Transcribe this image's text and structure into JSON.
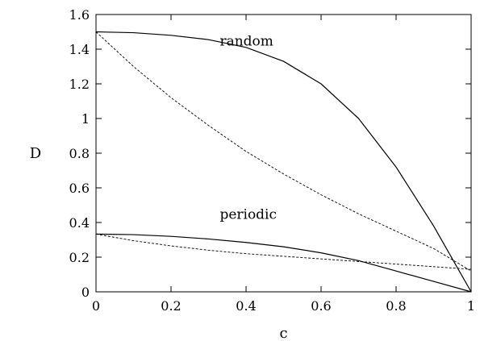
{
  "chart_data": {
    "type": "line",
    "title": "",
    "xlabel": "c",
    "ylabel": "D",
    "xlim": [
      0,
      1
    ],
    "ylim": [
      0,
      1.6
    ],
    "xticks": [
      0,
      0.2,
      0.4,
      0.6,
      0.8,
      1
    ],
    "yticks": [
      0,
      0.2,
      0.4,
      0.6,
      0.8,
      1,
      1.2,
      1.4,
      1.6
    ],
    "xtick_labels": [
      "0",
      "0.2",
      "0.4",
      "0.6",
      "0.8",
      "1"
    ],
    "ytick_labels": [
      "0",
      "0.2",
      "0.4",
      "0.6",
      "0.8",
      "1",
      "1.2",
      "1.4",
      "1.6"
    ],
    "grid": false,
    "legend": "none",
    "annotations": [
      {
        "text": "random",
        "x": 0.33,
        "y": 1.42
      },
      {
        "text": "periodic",
        "x": 0.33,
        "y": 0.42
      }
    ],
    "series": [
      {
        "style": "solid",
        "x": [
          0,
          0.1,
          0.2,
          0.3,
          0.4,
          0.5,
          0.6,
          0.7,
          0.8,
          0.9,
          0.95,
          1.0
        ],
        "y": [
          1.5,
          1.495,
          1.48,
          1.455,
          1.41,
          1.33,
          1.2,
          1.0,
          0.72,
          0.38,
          0.19,
          0.0
        ]
      },
      {
        "style": "dashed",
        "x": [
          0,
          0.1,
          0.2,
          0.3,
          0.4,
          0.5,
          0.6,
          0.7,
          0.8,
          0.9,
          1.0
        ],
        "y": [
          1.5,
          1.3,
          1.12,
          0.96,
          0.81,
          0.68,
          0.56,
          0.45,
          0.35,
          0.25,
          0.12
        ]
      },
      {
        "style": "solid",
        "x": [
          0,
          0.1,
          0.2,
          0.3,
          0.4,
          0.5,
          0.6,
          0.7,
          0.8,
          0.9,
          1.0
        ],
        "y": [
          0.333,
          0.33,
          0.32,
          0.305,
          0.285,
          0.26,
          0.225,
          0.18,
          0.12,
          0.06,
          0.0
        ]
      },
      {
        "style": "dashed",
        "x": [
          0,
          0.1,
          0.2,
          0.3,
          0.4,
          0.5,
          0.6,
          0.7,
          0.8,
          0.9,
          1.0
        ],
        "y": [
          0.333,
          0.295,
          0.265,
          0.24,
          0.22,
          0.205,
          0.19,
          0.175,
          0.16,
          0.145,
          0.13
        ]
      }
    ]
  }
}
